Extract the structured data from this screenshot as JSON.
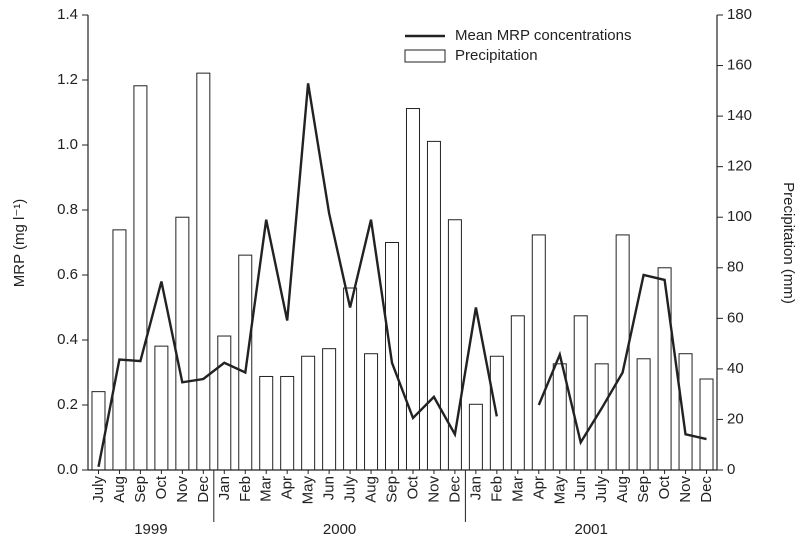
{
  "chart_data": {
    "type": "combo",
    "y_label": "MRP (mg l⁻¹)",
    "y2_label": "Precipitation (mm)",
    "categories": [
      "July",
      "Aug",
      "Sep",
      "Oct",
      "Nov",
      "Dec",
      "Jan",
      "Feb",
      "Mar",
      "Apr",
      "May",
      "Jun",
      "July",
      "Aug",
      "Sep",
      "Oct",
      "Nov",
      "Dec",
      "Jan",
      "Feb",
      "Mar",
      "Apr",
      "May",
      "Jun",
      "July",
      "Aug",
      "Sep",
      "Oct",
      "Nov",
      "Dec"
    ],
    "groups": [
      {
        "name": "1999",
        "count": 6
      },
      {
        "name": "2000",
        "count": 12
      },
      {
        "name": "2001",
        "count": 12
      }
    ],
    "series": [
      {
        "name": "Mean MRP concentrations",
        "type": "line",
        "color": "#222222",
        "axis": "y",
        "values": [
          0.01,
          0.34,
          0.335,
          0.58,
          0.27,
          0.28,
          0.33,
          0.3,
          0.77,
          0.46,
          1.19,
          0.79,
          0.5,
          0.77,
          0.33,
          0.16,
          0.225,
          0.11,
          0.5,
          0.165,
          null,
          0.2,
          0.355,
          0.085,
          0.19,
          0.3,
          0.6,
          0.585,
          0.11,
          0.095
        ]
      },
      {
        "name": "Precipitation",
        "type": "bar",
        "color": "#ffffff",
        "axis": "y2",
        "values": [
          31,
          95,
          152,
          49,
          100,
          157,
          53,
          85,
          37,
          37,
          45,
          48,
          72,
          46,
          90,
          143,
          130,
          99,
          26,
          45,
          61,
          93,
          42,
          61,
          42,
          93,
          44,
          80,
          46,
          36
        ]
      }
    ],
    "ylim": [
      0,
      1.4
    ],
    "yticks": [
      {
        "value": 0,
        "label": "0.0"
      },
      0.2,
      0.4,
      0.6,
      0.8,
      {
        "value": 1,
        "label": "1.0"
      },
      1.2,
      1.4
    ],
    "y2lim": [
      0,
      180
    ],
    "y2ticks": [
      0,
      20,
      40,
      60,
      80,
      100,
      120,
      140,
      160,
      180
    ],
    "legend": "upper right",
    "grid": false
  }
}
